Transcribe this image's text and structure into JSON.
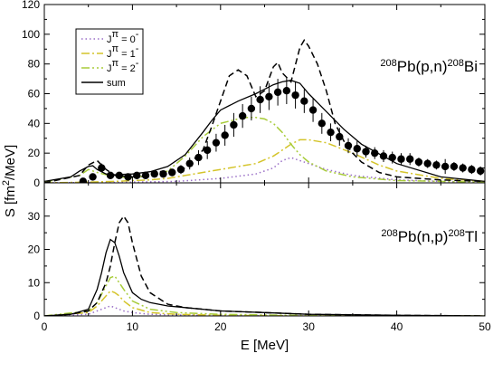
{
  "chart_data": [
    {
      "id": "top",
      "type": "line",
      "reaction": {
        "pre": "208",
        "a": "Pb(p,n)",
        "mid": "208",
        "b": "Bi"
      },
      "xlim": [
        0,
        50
      ],
      "ylim": [
        0,
        120
      ],
      "yticks": [
        0,
        20,
        40,
        60,
        80,
        100,
        120
      ],
      "legend": {
        "placement": "top-left",
        "entries": [
          {
            "key": "j0",
            "label": "J",
            "sup": "π",
            "eq": " = 0",
            "sup2": "-"
          },
          {
            "key": "j1",
            "label": "J",
            "sup": "π",
            "eq": " = 1",
            "sup2": "-"
          },
          {
            "key": "j2",
            "label": "J",
            "sup": "π",
            "eq": " = 2",
            "sup2": "-"
          },
          {
            "key": "sum",
            "label": "sum",
            "sup": "",
            "eq": "",
            "sup2": ""
          }
        ]
      },
      "series": [
        {
          "key": "j0",
          "color": "#9a6fc7",
          "dash": "1.5,3",
          "x": [
            0,
            10,
            15,
            20,
            24,
            26,
            27,
            28,
            29,
            30,
            32,
            35,
            40,
            45,
            50
          ],
          "y": [
            0,
            0.5,
            1,
            3,
            6,
            10,
            15,
            17,
            15,
            13,
            9,
            5,
            2,
            1,
            0.5
          ]
        },
        {
          "key": "j1",
          "color": "#d4c42a",
          "dash": "9,3,2,3",
          "x": [
            0,
            5,
            8,
            10,
            12,
            14,
            16,
            18,
            20,
            22,
            24,
            26,
            27,
            28,
            29,
            30,
            32,
            35,
            38,
            40,
            45,
            50
          ],
          "y": [
            0,
            0.5,
            1,
            1.5,
            2,
            3,
            5,
            7,
            9,
            11,
            13,
            18,
            22,
            26,
            29,
            29,
            27,
            20,
            12,
            8,
            3,
            1
          ]
        },
        {
          "key": "j2",
          "color": "#a8cc3a",
          "dash": "9,3,2,3,2,3",
          "x": [
            0,
            4,
            5,
            6,
            8,
            10,
            12,
            14,
            16,
            18,
            20,
            22,
            23,
            24,
            25,
            26,
            27,
            28,
            29,
            30,
            32,
            35,
            40,
            50
          ],
          "y": [
            0.5,
            5,
            9,
            7,
            4,
            3.5,
            5,
            8,
            18,
            31,
            40,
            43,
            44,
            44,
            43,
            40,
            34,
            26,
            19,
            14,
            8,
            4,
            1.5,
            0.5
          ]
        },
        {
          "key": "sum",
          "color": "#000000",
          "dash": "",
          "x": [
            0,
            3,
            4,
            5,
            5.5,
            6,
            7,
            8,
            10,
            12,
            14,
            16,
            18,
            19,
            20,
            22,
            24,
            25,
            26,
            27,
            28,
            29,
            30,
            31,
            32,
            34,
            36,
            40,
            45,
            50
          ],
          "y": [
            1,
            4,
            8,
            11,
            11.5,
            9,
            6,
            5.5,
            6,
            7.5,
            11,
            19,
            34,
            42,
            49,
            55,
            60,
            63,
            66,
            68,
            69,
            67,
            60,
            54,
            48,
            36,
            26,
            13,
            4,
            1
          ]
        },
        {
          "key": "dashed",
          "color": "#000000",
          "dash": "7,4",
          "x": [
            0,
            4,
            5,
            6,
            7,
            8,
            10,
            12,
            13,
            14,
            16,
            18,
            19,
            20,
            21,
            22,
            23,
            24,
            25,
            26,
            26.5,
            27,
            28,
            29,
            29.5,
            30,
            31,
            32,
            33,
            34,
            35,
            36,
            38,
            40,
            45,
            50
          ],
          "y": [
            0,
            5,
            12,
            15,
            9,
            5,
            4,
            4.5,
            8,
            6,
            10,
            22,
            38,
            55,
            72,
            76,
            72,
            58,
            62,
            78,
            81,
            74,
            68,
            91,
            96,
            92,
            80,
            62,
            40,
            28,
            20,
            14,
            7,
            4,
            2,
            1
          ]
        }
      ],
      "points": {
        "x": [
          4.4,
          5.5,
          6.5,
          7.5,
          8.5,
          9.5,
          10.5,
          11.5,
          12.5,
          13.5,
          14.5,
          15.5,
          16.5,
          17.5,
          18.5,
          19.5,
          20.5,
          21.5,
          22.5,
          23.5,
          24.5,
          25.5,
          26.5,
          27.5,
          28.5,
          29.5,
          30.5,
          31.5,
          32.5,
          33.5,
          34.5,
          35.5,
          36.5,
          37.5,
          38.5,
          39.5,
          40.5,
          41.5,
          42.5,
          43.5,
          44.5,
          45.5,
          46.5,
          47.5,
          48.5,
          49.5
        ],
        "y": [
          1,
          4,
          10,
          5,
          5,
          4,
          5,
          5,
          6,
          6,
          7,
          9,
          13,
          17,
          22,
          27,
          32,
          39,
          45,
          50,
          56,
          58,
          61,
          62,
          59,
          55,
          49,
          40,
          34,
          31,
          25,
          23,
          21,
          20,
          18,
          17,
          16,
          16,
          14,
          13,
          12,
          11,
          11,
          10,
          9,
          8
        ],
        "err": [
          2,
          2,
          3,
          2,
          2,
          2,
          2,
          2,
          2,
          2,
          2,
          3,
          4,
          5,
          6,
          6,
          7,
          8,
          8,
          8,
          9,
          9,
          9,
          9,
          9,
          8,
          8,
          7,
          6,
          6,
          5,
          5,
          4,
          4,
          4,
          4,
          4,
          4,
          3,
          3,
          3,
          5,
          3,
          3,
          3,
          3
        ]
      }
    },
    {
      "id": "bottom",
      "type": "line",
      "reaction": {
        "pre": "208",
        "a": "Pb(n,p)",
        "mid": "208",
        "b": "Tl"
      },
      "xlabel": "E [MeV]",
      "xlim": [
        0,
        50
      ],
      "ylim": [
        0,
        40
      ],
      "xticks": [
        0,
        10,
        20,
        30,
        40,
        50
      ],
      "yticks": [
        0,
        10,
        20,
        30
      ],
      "series": [
        {
          "key": "j0",
          "color": "#9a6fc7",
          "dash": "1.5,3",
          "x": [
            0,
            5,
            6,
            7,
            7.5,
            8,
            9,
            10,
            12,
            15,
            20,
            30,
            50
          ],
          "y": [
            0,
            0.5,
            1.5,
            2.5,
            3,
            2.5,
            1.5,
            1,
            0.5,
            0.3,
            0.1,
            0,
            0
          ]
        },
        {
          "key": "j1",
          "color": "#d4c42a",
          "dash": "9,3,2,3",
          "x": [
            0,
            5,
            6,
            7,
            7.5,
            8,
            8.5,
            9,
            10,
            12,
            15,
            20,
            30,
            50
          ],
          "y": [
            0,
            1,
            3,
            6,
            7.5,
            7,
            6,
            4.5,
            2.5,
            1,
            0.5,
            0.2,
            0,
            0
          ]
        },
        {
          "key": "j2",
          "color": "#a8cc3a",
          "dash": "9,3,2,3,2,3",
          "x": [
            0,
            5,
            6,
            7,
            7.5,
            8,
            8.5,
            9,
            10,
            12,
            15,
            20,
            30,
            50
          ],
          "y": [
            0,
            1.5,
            4,
            9,
            11.5,
            12,
            10,
            8,
            4.5,
            2,
            1,
            0.5,
            0.1,
            0
          ]
        },
        {
          "key": "sum",
          "color": "#000000",
          "dash": "",
          "x": [
            0,
            3,
            5,
            6,
            6.5,
            7,
            7.5,
            8,
            8.5,
            9,
            10,
            11,
            12,
            14,
            16,
            20,
            25,
            30,
            40,
            50
          ],
          "y": [
            0,
            0.5,
            2,
            8,
            13,
            19,
            23,
            22,
            18,
            13,
            7,
            5,
            4,
            3,
            2.5,
            1.5,
            1,
            0.5,
            0.2,
            0
          ]
        },
        {
          "key": "dashed",
          "color": "#000000",
          "dash": "7,4",
          "x": [
            0,
            3,
            5,
            6,
            7,
            7.5,
            8,
            8.5,
            9,
            9.5,
            10,
            11,
            12,
            14,
            16,
            20,
            25,
            30,
            40,
            50
          ],
          "y": [
            0,
            0.5,
            1.5,
            4,
            10,
            15,
            22,
            28,
            30,
            28,
            22,
            12,
            7,
            3.5,
            2.5,
            1.5,
            1,
            0.5,
            0.2,
            0
          ]
        }
      ]
    }
  ],
  "ylabel": {
    "a": "S [fm",
    "sup": "2",
    "b": "/MeV]"
  }
}
